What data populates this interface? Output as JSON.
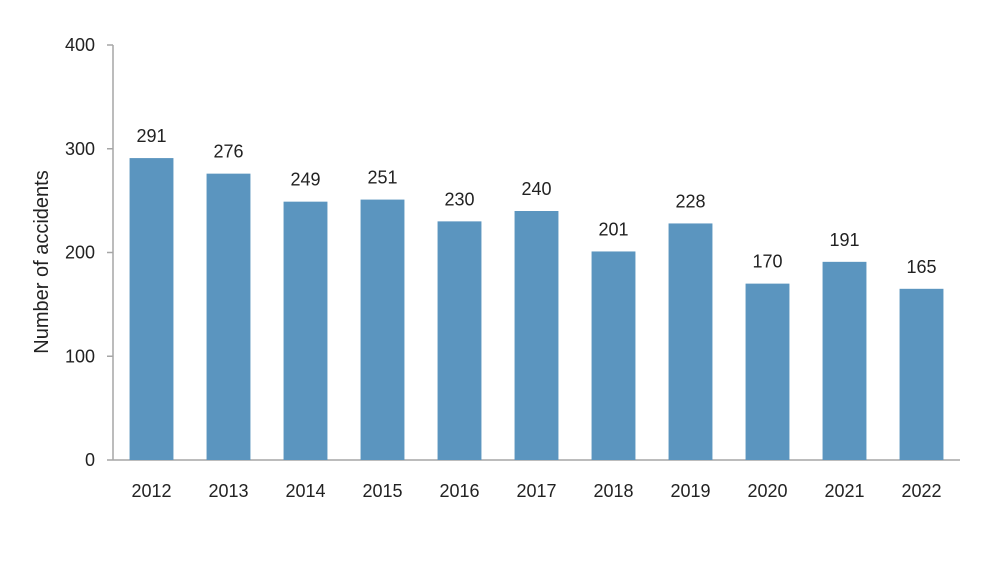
{
  "chart_data": {
    "type": "bar",
    "title": "",
    "xlabel": "",
    "ylabel": "Number of accidents",
    "categories": [
      "2012",
      "2013",
      "2014",
      "2015",
      "2016",
      "2017",
      "2018",
      "2019",
      "2020",
      "2021",
      "2022"
    ],
    "values": [
      291,
      276,
      249,
      251,
      230,
      240,
      201,
      228,
      170,
      191,
      165
    ],
    "ylim": [
      0,
      400
    ],
    "yticks": [
      0,
      100,
      200,
      300,
      400
    ],
    "grid": false,
    "legend": "none",
    "bar_color": "#5b95bf",
    "data_labels": true
  }
}
